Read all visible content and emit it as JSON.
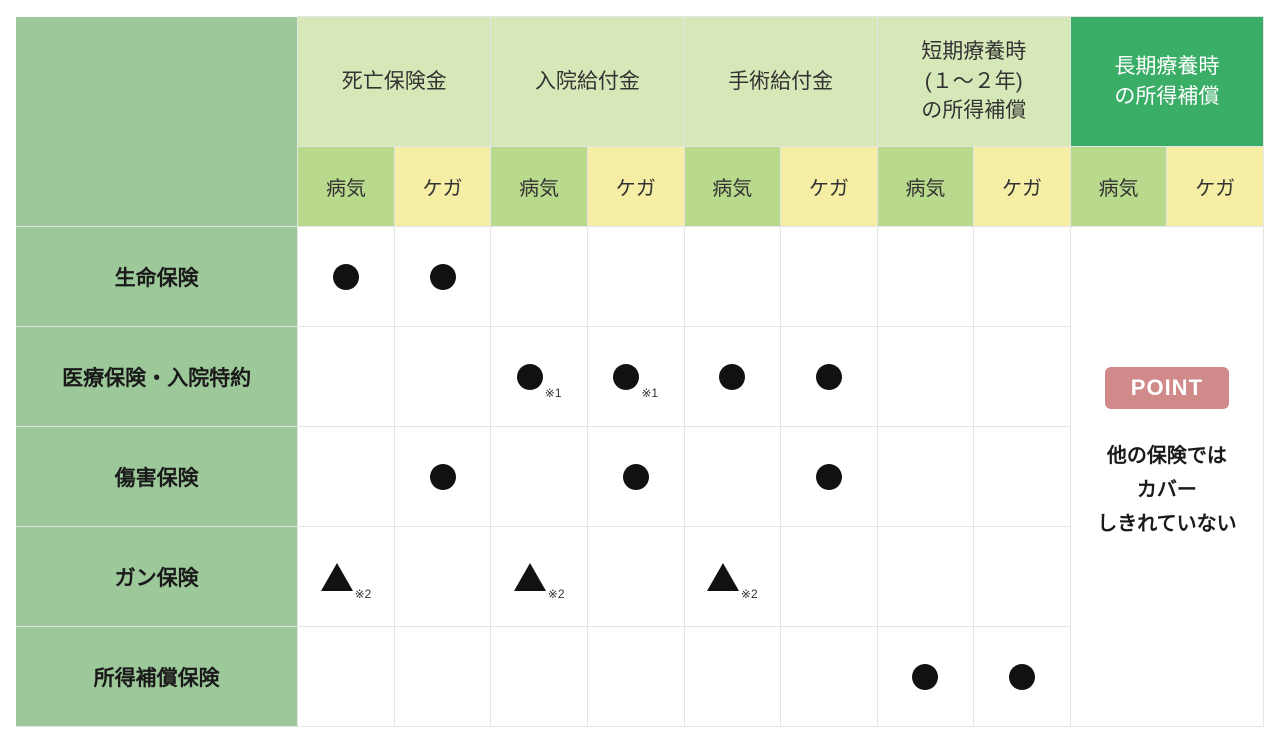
{
  "columnGroups": [
    {
      "label": "死亡保険金",
      "accent": false
    },
    {
      "label": "入院給付金",
      "accent": false
    },
    {
      "label": "手術給付金",
      "accent": false
    },
    {
      "label": "短期療養時\n(１～２年)\nの所得補償",
      "accent": false
    },
    {
      "label": "長期療養時\nの所得補償",
      "accent": true
    }
  ],
  "subCols": {
    "sick": "病気",
    "injury": "ケガ"
  },
  "rows": [
    {
      "label": "生命保険",
      "cells": [
        "dot",
        "dot",
        "",
        "",
        "",
        "",
        "",
        ""
      ]
    },
    {
      "label": "医療保険・入院特約",
      "cells": [
        "",
        "",
        "dot※1",
        "dot※1",
        "dot",
        "dot",
        "",
        ""
      ]
    },
    {
      "label": "傷害保険",
      "cells": [
        "",
        "dot",
        "",
        "dot",
        "",
        "dot",
        "",
        ""
      ]
    },
    {
      "label": "ガン保険",
      "cells": [
        "tri※2",
        "",
        "tri※2",
        "",
        "tri※2",
        "",
        "",
        ""
      ]
    },
    {
      "label": "所得補償保険",
      "cells": [
        "",
        "",
        "",
        "",
        "",
        "",
        "dot",
        "dot"
      ]
    }
  ],
  "point": {
    "badge": "POINT",
    "text": "他の保険では\nカバー\nしきれていない"
  },
  "notes": {
    "n1": "※1",
    "n2": "※2"
  },
  "colors": {
    "rowHead": "#9cc89a",
    "groupNormal": "#d7e8b8",
    "groupAccent": "#3aad67",
    "subGreen": "#b9d98d",
    "subYellow": "#f5eea4",
    "pointBadge": "#d08a89",
    "mark": "#111111",
    "border": "#e4e4e4"
  }
}
